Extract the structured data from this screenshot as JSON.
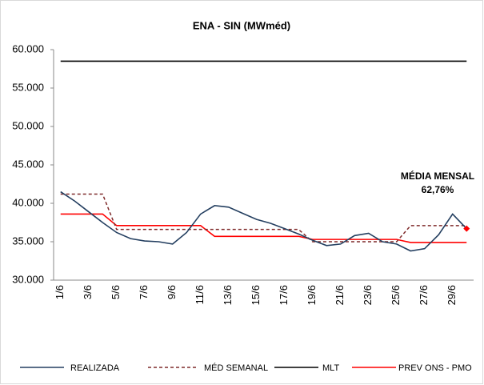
{
  "chart_data": {
    "type": "line",
    "title": "ENA - SIN (MWméd)",
    "categories": [
      "1/6",
      null,
      "3/6",
      null,
      "5/6",
      null,
      "7/6",
      null,
      "9/6",
      null,
      "11/6",
      null,
      "13/6",
      null,
      "15/6",
      null,
      "17/6",
      null,
      "19/6",
      null,
      "21/6",
      null,
      "23/6",
      null,
      "25/6",
      null,
      "27/6",
      null,
      "29/6",
      null
    ],
    "ylim": [
      30000,
      60000
    ],
    "yticks": [
      {
        "value": 30000,
        "label": "30.000"
      },
      {
        "value": 35000,
        "label": "35.000"
      },
      {
        "value": 40000,
        "label": "40.000"
      },
      {
        "value": 45000,
        "label": "45.000"
      },
      {
        "value": 50000,
        "label": "50.000"
      },
      {
        "value": 55000,
        "label": "55.000"
      },
      {
        "value": 60000,
        "label": "60.000"
      }
    ],
    "grid": false,
    "legend": "bottom",
    "annotations": [
      "MÉDIA MENSAL",
      "62,76%"
    ],
    "series": [
      {
        "name": "REALIZADA",
        "color": "#243f60",
        "dashed": false,
        "last_marker_color": "#ff0000",
        "values": [
          41500,
          40300,
          38900,
          37500,
          36200,
          35400,
          35100,
          35000,
          34700,
          36200,
          38600,
          39700,
          39500,
          38700,
          37900,
          37400,
          36700,
          36000,
          35200,
          34500,
          34700,
          35800,
          36100,
          35000,
          34700,
          33800,
          34100,
          35900,
          38600,
          36700
        ]
      },
      {
        "name": "MÉD SEMANAL",
        "color": "#7f2a2a",
        "dashed": true,
        "values": [
          41200,
          41200,
          41200,
          41200,
          36600,
          36600,
          36600,
          36600,
          36600,
          36600,
          36600,
          36600,
          36600,
          36600,
          36600,
          36600,
          36600,
          36600,
          35000,
          35000,
          35000,
          35000,
          35000,
          35000,
          35000,
          37100,
          37100,
          37100,
          37100,
          37100
        ]
      },
      {
        "name": "MLT",
        "color": "#000000",
        "dashed": false,
        "values": [
          58500,
          58500,
          58500,
          58500,
          58500,
          58500,
          58500,
          58500,
          58500,
          58500,
          58500,
          58500,
          58500,
          58500,
          58500,
          58500,
          58500,
          58500,
          58500,
          58500,
          58500,
          58500,
          58500,
          58500,
          58500,
          58500,
          58500,
          58500,
          58500,
          58500
        ]
      },
      {
        "name": "PREV ONS - PMO",
        "color": "#ff0000",
        "dashed": false,
        "values": [
          38600,
          38600,
          38600,
          38600,
          37100,
          37100,
          37100,
          37100,
          37100,
          37100,
          37100,
          35700,
          35700,
          35700,
          35700,
          35700,
          35700,
          35700,
          35300,
          35300,
          35300,
          35300,
          35300,
          35300,
          35300,
          34900,
          34900,
          34900,
          34900,
          34900
        ]
      }
    ]
  }
}
